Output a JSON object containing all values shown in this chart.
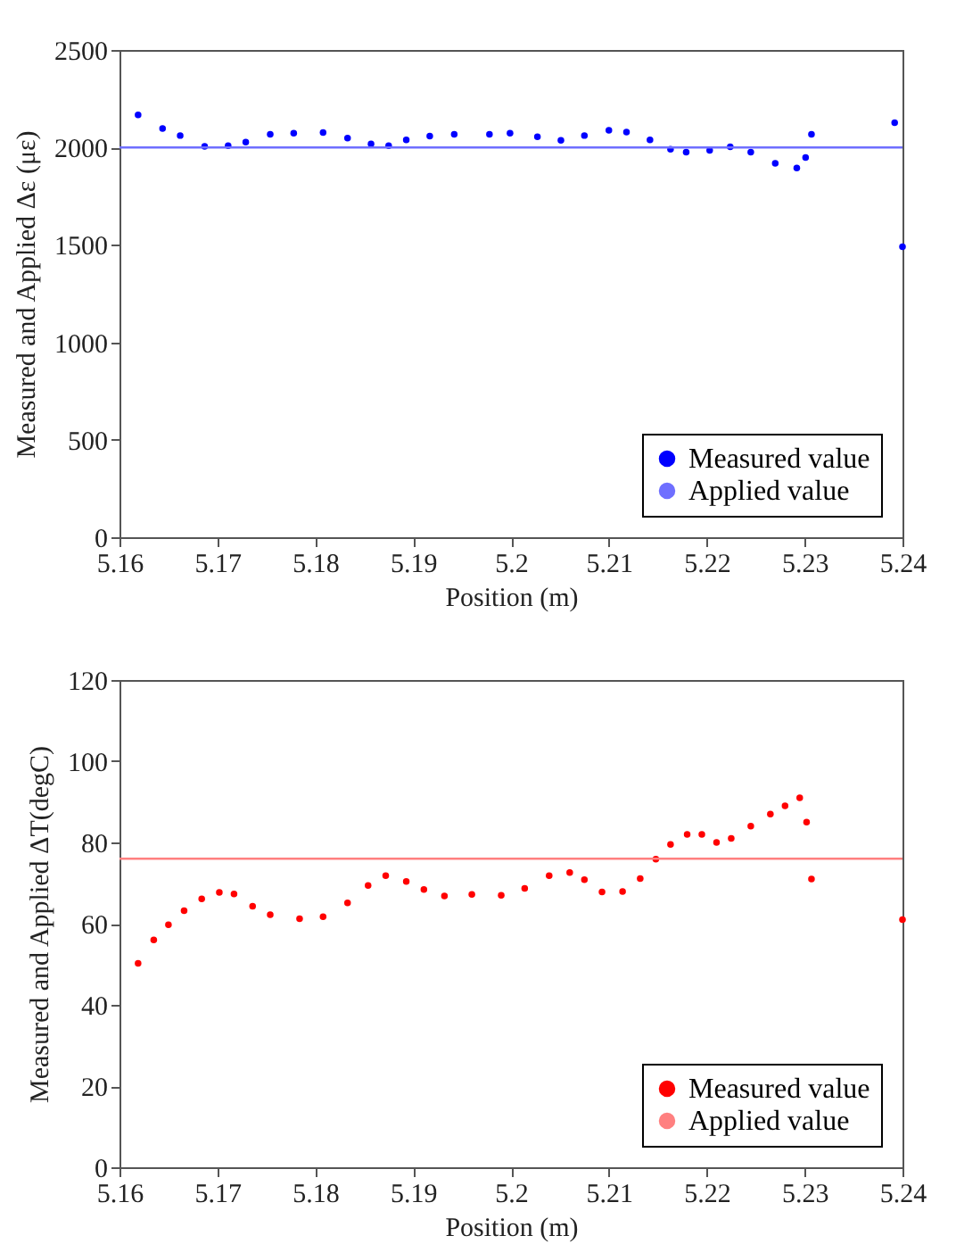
{
  "chart_data": [
    {
      "type": "scatter",
      "xlabel": "Position (m)",
      "ylabel": "Measured and Applied Δε (με)",
      "xlim": [
        5.16,
        5.24
      ],
      "xticks": [
        5.16,
        5.17,
        5.18,
        5.19,
        5.2,
        5.21,
        5.22,
        5.23,
        5.24
      ],
      "ylim": [
        0,
        2500
      ],
      "yticks": [
        0,
        500,
        1000,
        1500,
        2000,
        2500
      ],
      "grid": false,
      "legend": "bottom right",
      "series": [
        {
          "name": "Measured value",
          "marker": "circle",
          "color": "#0000ff",
          "x": [
            5.1619,
            5.1644,
            5.1662,
            5.1687,
            5.1711,
            5.1729,
            5.1754,
            5.1778,
            5.1808,
            5.1833,
            5.1857,
            5.1875,
            5.1893,
            5.1917,
            5.1942,
            5.1978,
            5.1999,
            5.2027,
            5.2051,
            5.2075,
            5.21,
            5.2118,
            5.2142,
            5.2163,
            5.2179,
            5.2203,
            5.2224,
            5.2245,
            5.227,
            5.2292,
            5.2301,
            5.2307,
            5.2392,
            5.24
          ],
          "values": [
            2167,
            2097,
            2061,
            2006,
            2009,
            2027,
            2067,
            2073,
            2076,
            2048,
            2018,
            2009,
            2039,
            2058,
            2067,
            2067,
            2073,
            2055,
            2036,
            2061,
            2088,
            2079,
            2039,
            1991,
            1976,
            1985,
            2003,
            1976,
            1918,
            1894,
            1948,
            2067,
            2127,
            1490
          ]
        },
        {
          "name": "Applied value",
          "type": "line",
          "color": "#6f6fff",
          "x": [
            5.16,
            5.24
          ],
          "values": [
            2000,
            2000
          ]
        }
      ]
    },
    {
      "type": "scatter",
      "xlabel": "Position (m)",
      "ylabel": "Measured and Applied ΔT(degC)",
      "xlim": [
        5.16,
        5.24
      ],
      "xticks": [
        5.16,
        5.17,
        5.18,
        5.19,
        5.2,
        5.21,
        5.22,
        5.23,
        5.24
      ],
      "ylim": [
        0,
        120
      ],
      "yticks": [
        0,
        20,
        40,
        60,
        80,
        100,
        120
      ],
      "grid": false,
      "legend": "bottom right",
      "series": [
        {
          "name": "Measured value",
          "marker": "circle",
          "color": "#ff0000",
          "x": [
            5.1619,
            5.1635,
            5.165,
            5.1666,
            5.1684,
            5.1702,
            5.1717,
            5.1736,
            5.1754,
            5.1784,
            5.1808,
            5.1833,
            5.1854,
            5.1872,
            5.1893,
            5.1911,
            5.1932,
            5.196,
            5.199,
            5.2014,
            5.2039,
            5.206,
            5.2075,
            5.2093,
            5.2114,
            5.2132,
            5.2148,
            5.2163,
            5.218,
            5.2195,
            5.221,
            5.2225,
            5.2245,
            5.2265,
            5.228,
            5.2295,
            5.2302,
            5.2307,
            5.24
          ],
          "values": [
            50.2,
            56.0,
            59.7,
            63.2,
            66.1,
            67.7,
            67.3,
            64.3,
            62.2,
            61.2,
            61.7,
            65.1,
            69.4,
            71.8,
            70.4,
            68.4,
            66.8,
            67.2,
            67.0,
            68.7,
            71.8,
            72.6,
            70.8,
            67.8,
            67.9,
            71.1,
            75.9,
            79.5,
            82,
            82,
            80,
            81,
            84,
            87,
            89,
            91,
            85,
            71,
            61
          ]
        },
        {
          "name": "Applied value",
          "type": "line",
          "color": "#ff8080",
          "x": [
            5.16,
            5.24
          ],
          "values": [
            76,
            76
          ]
        }
      ]
    }
  ]
}
